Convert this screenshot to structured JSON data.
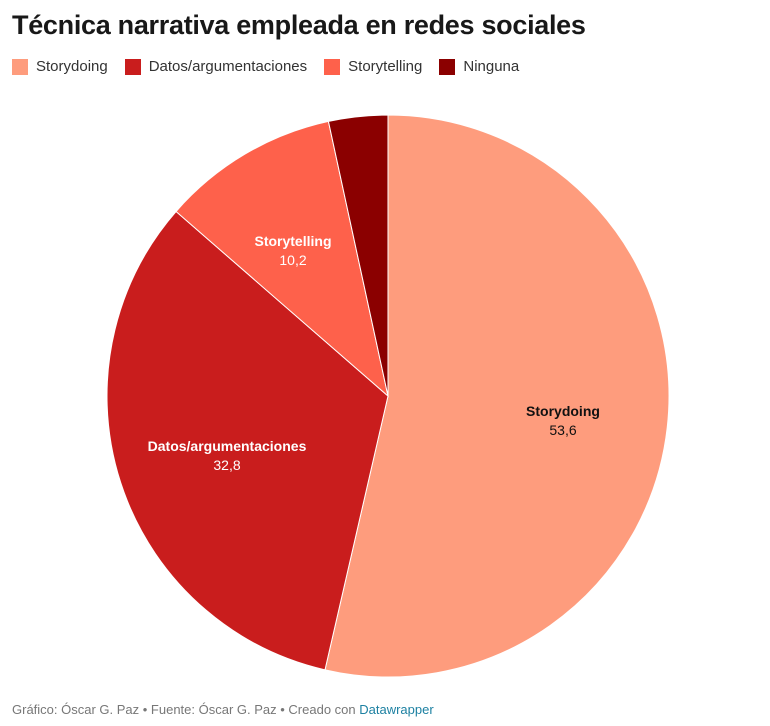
{
  "title": "Técnica narrativa empleada en redes sociales",
  "legend": [
    {
      "label": "Storydoing",
      "color": "#fe9c7d"
    },
    {
      "label": "Datos/argumentaciones",
      "color": "#c91d1d"
    },
    {
      "label": "Storytelling",
      "color": "#fe614b"
    },
    {
      "label": "Ninguna",
      "color": "#8b0000"
    }
  ],
  "chart_data": {
    "type": "pie",
    "title": "Técnica narrativa empleada en redes sociales",
    "slices": [
      {
        "label": "Storydoing",
        "value": 53.6,
        "display": "53,6",
        "color": "#fe9c7d",
        "label_color": "#111111"
      },
      {
        "label": "Datos/argumentaciones",
        "value": 32.8,
        "display": "32,8",
        "color": "#c91d1d",
        "label_color": "#ffffff"
      },
      {
        "label": "Storytelling",
        "value": 10.2,
        "display": "10,2",
        "color": "#fe614b",
        "label_color": "#ffffff"
      },
      {
        "label": "Ninguna",
        "value": 3.4,
        "display": "",
        "color": "#8b0000",
        "label_color": "#ffffff"
      }
    ],
    "legend_position": "top-left"
  },
  "footer": {
    "credits": "Gráfico: Óscar G. Paz • Fuente: Óscar G. Paz • Creado con ",
    "link": "Datawrapper"
  }
}
